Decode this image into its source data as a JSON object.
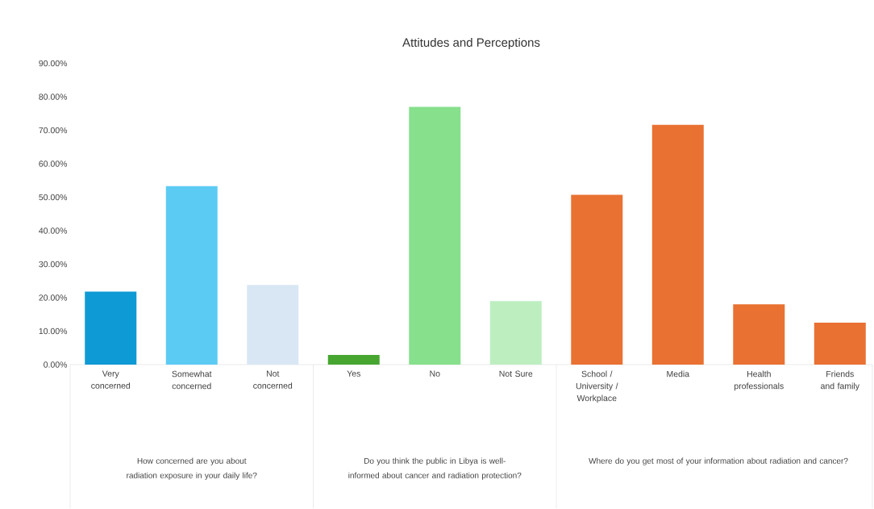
{
  "chart_data": {
    "type": "bar",
    "title": "Attitudes and Perceptions",
    "categories": [
      "Very concerned",
      "Somewhat concerned",
      "Not concerned",
      "Yes",
      "No",
      "Not Sure",
      "School / University / Workplace",
      "Media",
      "Health professionals",
      "Friends and family"
    ],
    "values": [
      21.8,
      53.3,
      23.8,
      2.9,
      77.0,
      19.0,
      50.7,
      71.6,
      18.0,
      12.5
    ],
    "colors": [
      "#0e9ad4",
      "#5ccbf4",
      "#d9e7f5",
      "#47a630",
      "#86e08c",
      "#bdeec0",
      "#e97132",
      "#e97132",
      "#e97132",
      "#e97132"
    ],
    "ylim": [
      0,
      90
    ],
    "yticks": [
      {
        "value": 0,
        "label": "0.00%"
      },
      {
        "value": 10,
        "label": "10.00%"
      },
      {
        "value": 20,
        "label": "20.00%"
      },
      {
        "value": 30,
        "label": "30.00%"
      },
      {
        "value": 40,
        "label": "40.00%"
      },
      {
        "value": 50,
        "label": "50.00%"
      },
      {
        "value": 60,
        "label": "60.00%"
      },
      {
        "value": 70,
        "label": "70.00%"
      },
      {
        "value": 80,
        "label": "80.00%"
      },
      {
        "value": 90,
        "label": "90.00%"
      }
    ],
    "annotations": [
      "How concerned are you about radiation exposure in your daily life?",
      "Do you think the public in Libya is well-informed about cancer and radiation protection?",
      "Where do you get most of your information about radiation and cancer?"
    ]
  }
}
